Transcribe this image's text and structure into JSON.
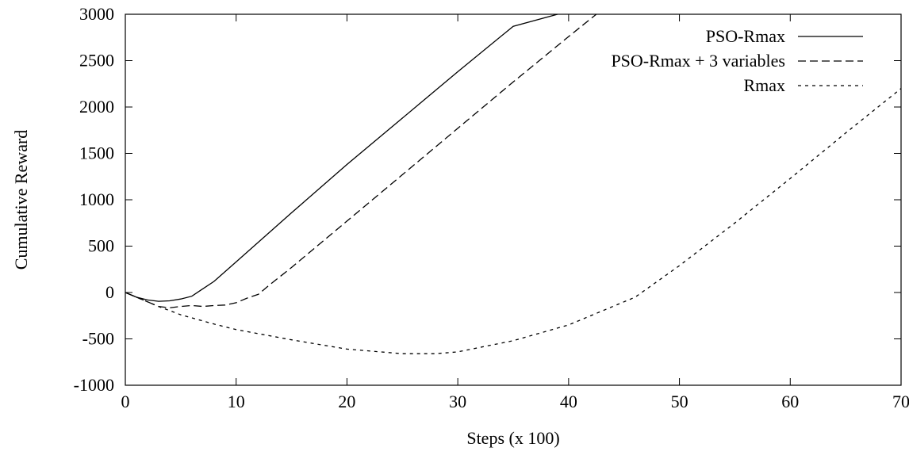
{
  "chart_data": {
    "type": "line",
    "title": "",
    "xlabel": "Steps (x 100)",
    "ylabel": "Cumulative Reward",
    "xlim": [
      0,
      70
    ],
    "ylim": [
      -1000,
      3000
    ],
    "xticks": [
      0,
      10,
      20,
      30,
      40,
      50,
      60,
      70
    ],
    "yticks": [
      -1000,
      -500,
      0,
      500,
      1000,
      1500,
      2000,
      2500,
      3000
    ],
    "grid": false,
    "legend_position": "top-right",
    "series": [
      {
        "name": "PSO-Rmax",
        "dash": "solid",
        "x": [
          0,
          1,
          2,
          3,
          4,
          5,
          6,
          7,
          8,
          10,
          15,
          20,
          25,
          30,
          35,
          39
        ],
        "y": [
          0,
          -50,
          -80,
          -95,
          -90,
          -70,
          -40,
          40,
          120,
          330,
          860,
          1380,
          1880,
          2380,
          2870,
          3000
        ]
      },
      {
        "name": "PSO-Rmax + 3 variables",
        "dash": "long-dash",
        "x": [
          0,
          1,
          2,
          3,
          4,
          5,
          6,
          7,
          8,
          9,
          10,
          11,
          12,
          13,
          15,
          20,
          25,
          30,
          35,
          40,
          42.5
        ],
        "y": [
          0,
          -50,
          -100,
          -150,
          -165,
          -150,
          -140,
          -150,
          -140,
          -135,
          -110,
          -60,
          -20,
          80,
          270,
          770,
          1270,
          1770,
          2270,
          2760,
          3000
        ]
      },
      {
        "name": "Rmax",
        "dash": "short-dash",
        "x": [
          0,
          3,
          5,
          8,
          10,
          15,
          20,
          25,
          28,
          30,
          35,
          40,
          46,
          50,
          55,
          60,
          65,
          70
        ],
        "y": [
          0,
          -150,
          -240,
          -340,
          -400,
          -510,
          -610,
          -660,
          -660,
          -640,
          -520,
          -350,
          -50,
          290,
          750,
          1230,
          1720,
          2200
        ]
      }
    ]
  }
}
